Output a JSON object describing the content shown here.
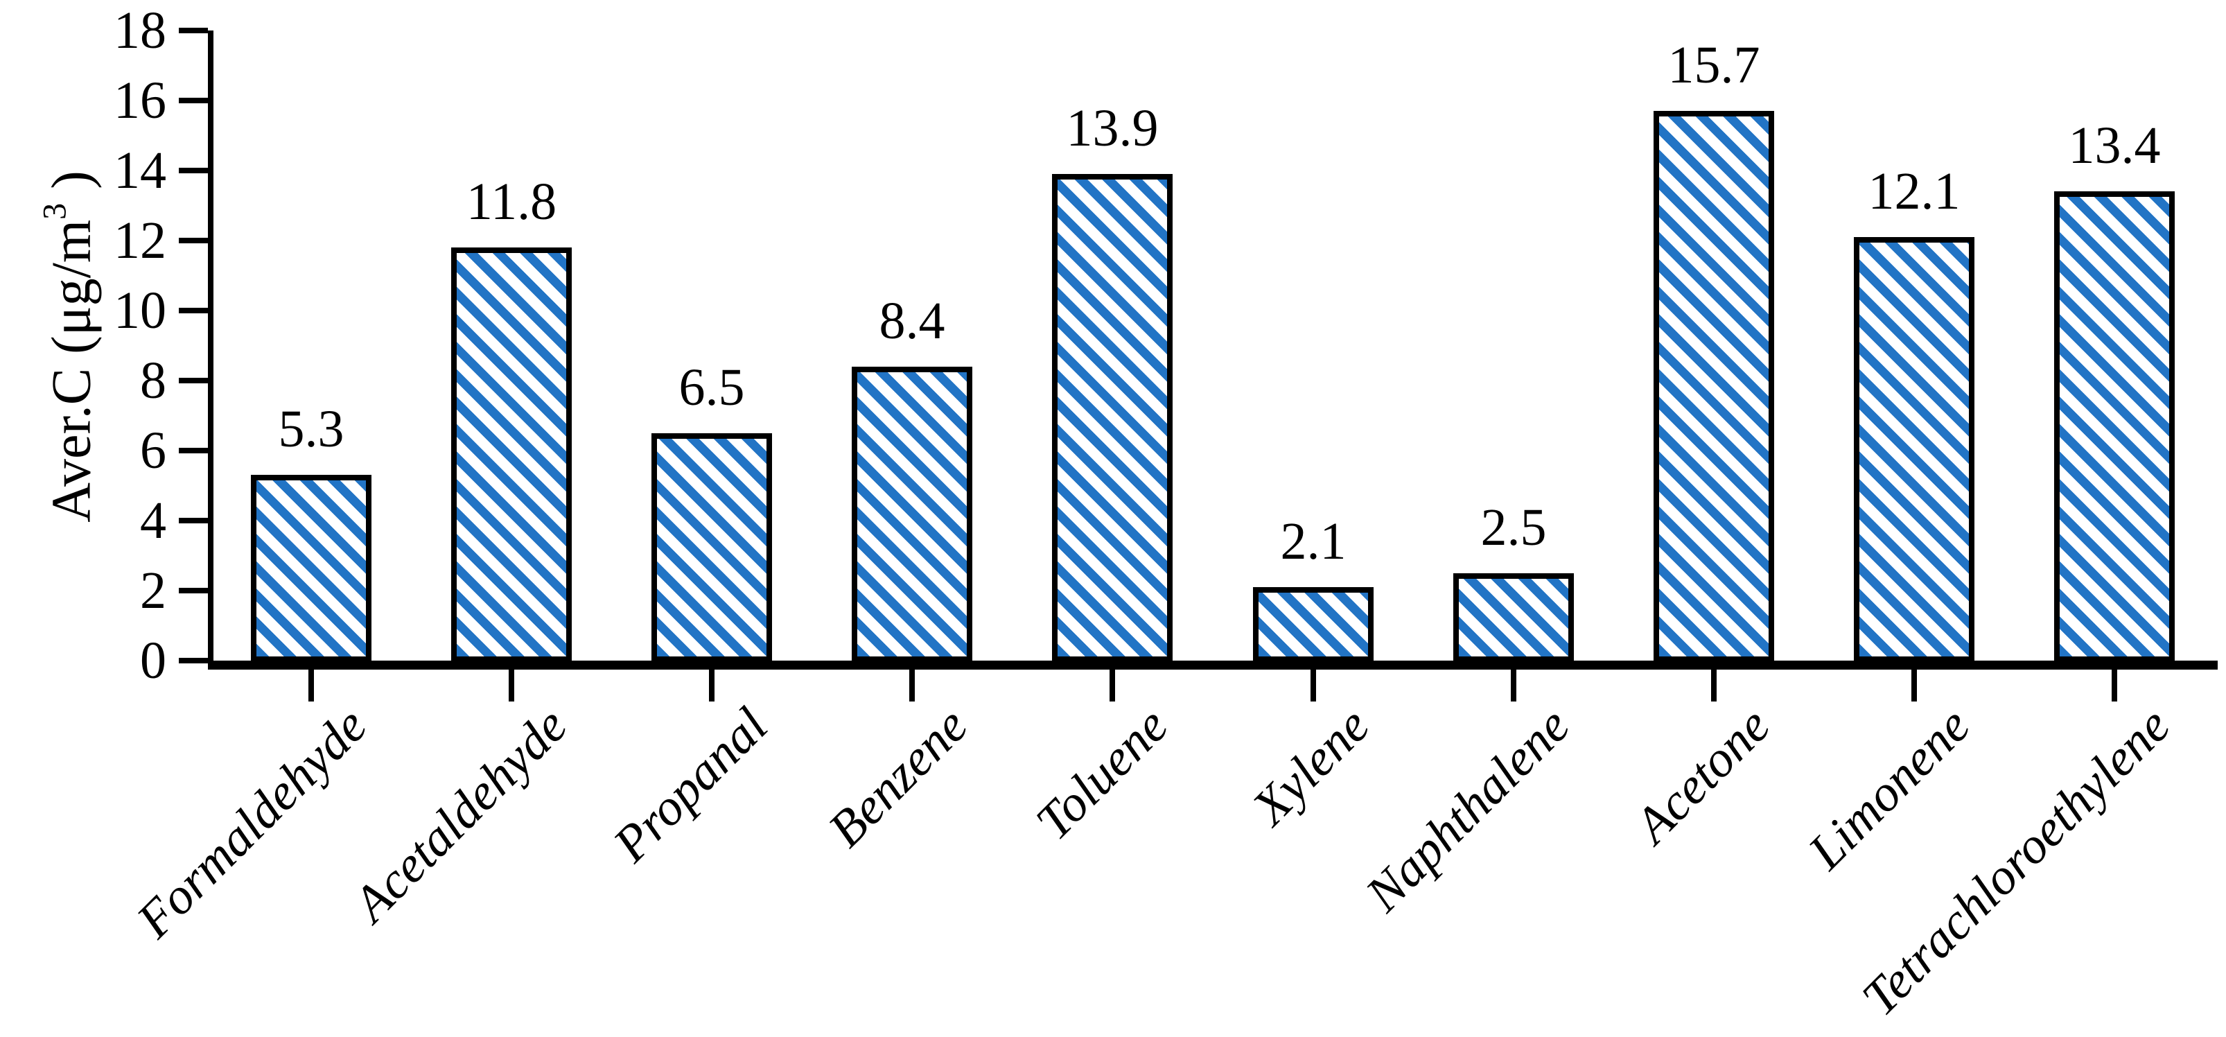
{
  "chart_data": {
    "type": "bar",
    "title": "",
    "categories": [
      "Formaldehyde",
      "Acetaldehyde",
      "Propanal",
      "Benzene",
      "Toluene",
      "Xylene",
      "Naphthalene",
      "Acetone",
      "Limonene",
      "Tetrachloroethylene"
    ],
    "values": [
      5.3,
      11.8,
      6.5,
      8.4,
      13.9,
      2.1,
      2.5,
      15.7,
      12.1,
      13.4
    ],
    "value_labels": [
      "5.3",
      "11.8",
      "6.5",
      "8.4",
      "13.9",
      "2.1",
      "2.5",
      "15.7",
      "12.1",
      "13.4"
    ],
    "xlabel": "",
    "ylabel": "Aver.C (μg/m³ )",
    "ylabel_parts": {
      "prefix": "Aver.C (μg/m",
      "sup": "3",
      "suffix": " )"
    },
    "ylim": [
      0,
      18
    ],
    "ytick_step": 2,
    "yticks": [
      "0",
      "2",
      "4",
      "6",
      "8",
      "10",
      "12",
      "14",
      "16",
      "18"
    ],
    "grid": false,
    "legend": null,
    "bar_style": {
      "hatch": "wide-downward-diagonal",
      "stripe_color": "#2274c5",
      "background_color": "#ffffff",
      "outline_color": "#000000"
    },
    "axis_color": "#000000",
    "text_color": "#000000"
  }
}
